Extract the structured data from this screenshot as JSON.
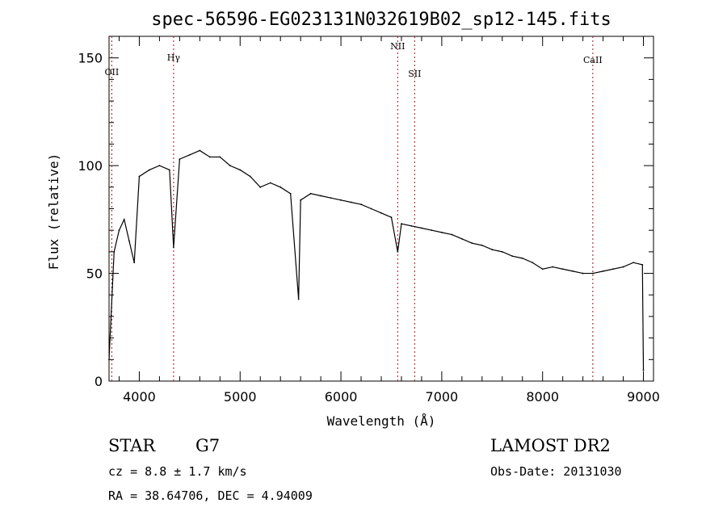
{
  "chart_data": {
    "type": "line",
    "title": "spec-56596-EG023131N032619B02_sp12-145.fits",
    "xlabel": "Wavelength (Å)",
    "ylabel": "Flux (relative)",
    "xlim": [
      3700,
      9100
    ],
    "ylim": [
      0,
      160
    ],
    "xticks": [
      4000,
      5000,
      6000,
      7000,
      8000,
      9000
    ],
    "yticks": [
      0,
      50,
      100,
      150
    ],
    "grid": false,
    "series": [
      {
        "x": [
          3700,
          3750,
          3800,
          3850,
          3900,
          3950,
          4000,
          4100,
          4200,
          4300,
          4340,
          4400,
          4500,
          4600,
          4700,
          4800,
          4900,
          5000,
          5100,
          5200,
          5300,
          5400,
          5500,
          5580,
          5600,
          5700,
          5800,
          5900,
          6000,
          6100,
          6200,
          6300,
          6400,
          6500,
          6563,
          6600,
          6700,
          6800,
          6900,
          7000,
          7100,
          7200,
          7300,
          7400,
          7500,
          7600,
          7700,
          7800,
          7900,
          8000,
          8100,
          8200,
          8300,
          8400,
          8500,
          8600,
          8700,
          8800,
          8900,
          8990,
          9000
        ],
        "y": [
          10,
          60,
          70,
          75,
          65,
          55,
          95,
          98,
          100,
          98,
          62,
          103,
          105,
          107,
          104,
          104,
          100,
          98,
          95,
          90,
          92,
          90,
          87,
          38,
          84,
          87,
          86,
          85,
          84,
          83,
          82,
          80,
          78,
          76,
          60,
          73,
          72,
          71,
          70,
          69,
          68,
          66,
          64,
          63,
          61,
          60,
          58,
          57,
          55,
          52,
          53,
          52,
          51,
          50,
          50,
          51,
          52,
          53,
          55,
          54,
          5
        ]
      }
    ],
    "annotations": [
      {
        "label": "OII",
        "x": 3727
      },
      {
        "label": "Hγ",
        "x": 4340
      },
      {
        "label": "NII",
        "x": 6563
      },
      {
        "label": "SII",
        "x": 6731
      },
      {
        "label": "CaII",
        "x": 8498
      }
    ]
  },
  "footer": {
    "class_label": "STAR",
    "subclass_label": "G7",
    "survey": "LAMOST DR2",
    "cz": "cz = 8.8 ± 1.7 km/s",
    "obs_date": "Obs-Date: 20131030",
    "coords": "RA =  38.64706, DEC =   4.94009"
  }
}
